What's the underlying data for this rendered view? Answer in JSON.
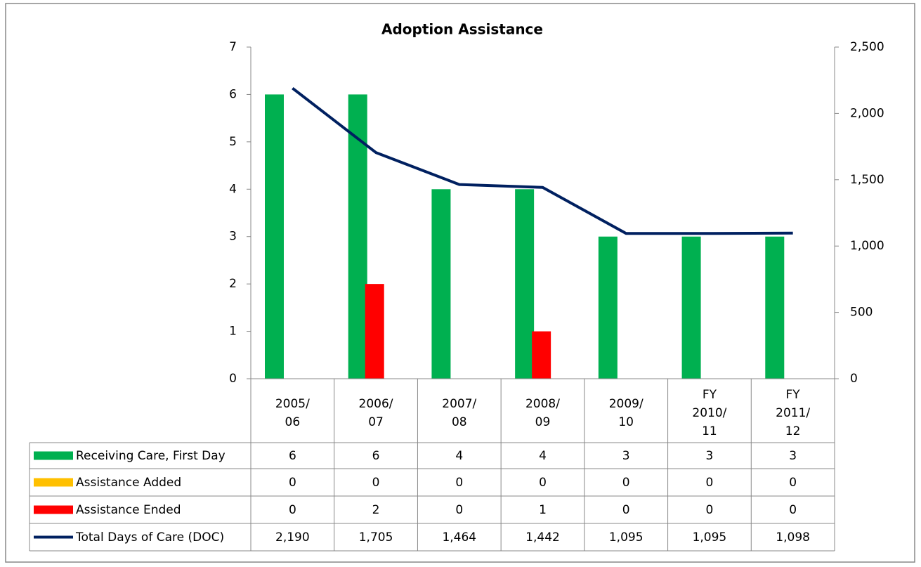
{
  "chart_data": {
    "type": "bar",
    "title": "Adoption Assistance",
    "categories": [
      "2005/\n06",
      "2006/\n07",
      "2007/\n08",
      "2008/\n09",
      "2009/\n10",
      "FY\n2010/\n11",
      "FY\n2011/\n12"
    ],
    "series": [
      {
        "name": "Receiving Care, First Day",
        "type": "bar",
        "color": "#00b050",
        "values": [
          6,
          6,
          4,
          4,
          3,
          3,
          3
        ]
      },
      {
        "name": "Assistance Added",
        "type": "bar",
        "color": "#ffc000",
        "values": [
          0,
          0,
          0,
          0,
          0,
          0,
          0
        ]
      },
      {
        "name": "Assistance Ended",
        "type": "bar",
        "color": "#ff0000",
        "values": [
          0,
          2,
          0,
          1,
          0,
          0,
          0
        ]
      },
      {
        "name": "Total Days of Care (DOC)",
        "type": "line",
        "axis": "y2",
        "color": "#002060",
        "values": [
          2190,
          1705,
          1464,
          1442,
          1095,
          1095,
          1098
        ],
        "value_labels": [
          "2,190",
          "1,705",
          "1,464",
          "1,442",
          "1,095",
          "1,095",
          "1,098"
        ]
      }
    ],
    "ylim": [
      0,
      7
    ],
    "yticks": [
      0,
      1,
      2,
      3,
      4,
      5,
      6,
      7
    ],
    "y2lim": [
      0,
      2500
    ],
    "y2ticks": [
      0,
      500,
      {
        "value": 1000,
        "label": "1,000"
      },
      {
        "value": 1500,
        "label": "1,500"
      },
      {
        "value": 2000,
        "label": "2,000"
      },
      {
        "value": 2500,
        "label": "2,500"
      }
    ],
    "legend": "table"
  }
}
